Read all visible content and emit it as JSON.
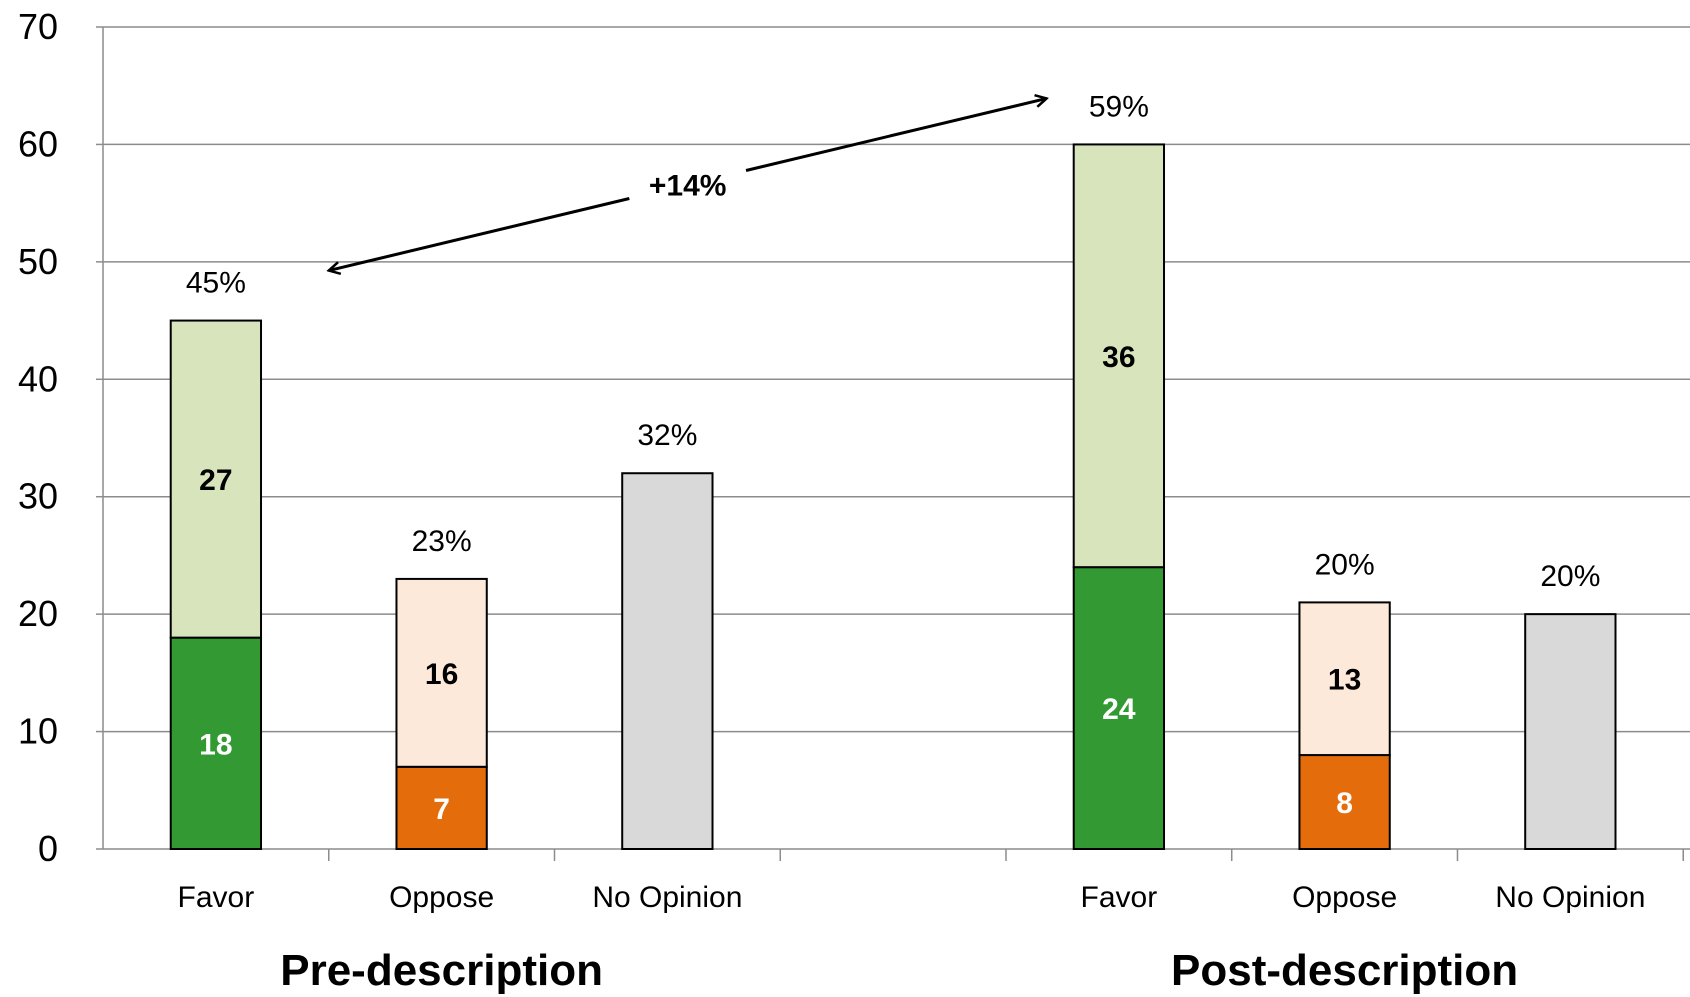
{
  "chart_data": {
    "type": "bar",
    "stacked": true,
    "ylim": [
      0,
      70
    ],
    "yticks": [
      0,
      10,
      20,
      30,
      40,
      50,
      60,
      70
    ],
    "grid": true,
    "groups": [
      {
        "label": "Pre-description",
        "bars": [
          {
            "category": "Favor",
            "total_label": "45%",
            "segments": [
              {
                "value": 18,
                "label": "18",
                "color": "#339933",
                "label_color": "#ffffff"
              },
              {
                "value": 27,
                "label": "27",
                "color": "#d8e4bc",
                "label_color": "#000000"
              }
            ]
          },
          {
            "category": "Oppose",
            "total_label": "23%",
            "segments": [
              {
                "value": 7,
                "label": "7",
                "color": "#e46c0a",
                "label_color": "#ffffff"
              },
              {
                "value": 16,
                "label": "16",
                "color": "#fde9d9",
                "label_color": "#000000"
              }
            ]
          },
          {
            "category": "No Opinion",
            "total_label": "32%",
            "segments": [
              {
                "value": 32,
                "label": "",
                "color": "#d9d9d9",
                "label_color": "#000000"
              }
            ]
          }
        ]
      },
      {
        "label": "Post-description",
        "bars": [
          {
            "category": "Favor",
            "total_label": "59%",
            "segments": [
              {
                "value": 24,
                "label": "24",
                "color": "#339933",
                "label_color": "#ffffff"
              },
              {
                "value": 36,
                "label": "36",
                "color": "#d8e4bc",
                "label_color": "#000000"
              }
            ]
          },
          {
            "category": "Oppose",
            "total_label": "20%",
            "segments": [
              {
                "value": 8,
                "label": "8",
                "color": "#e46c0a",
                "label_color": "#ffffff"
              },
              {
                "value": 13,
                "label": "13",
                "color": "#fde9d9",
                "label_color": "#000000"
              }
            ]
          },
          {
            "category": "No Opinion",
            "total_label": "20%",
            "segments": [
              {
                "value": 20,
                "label": "",
                "color": "#d9d9d9",
                "label_color": "#000000"
              }
            ]
          }
        ]
      }
    ],
    "annotation": {
      "text": "+14%",
      "from": "Pre-description Favor",
      "to": "Post-description Favor"
    }
  }
}
